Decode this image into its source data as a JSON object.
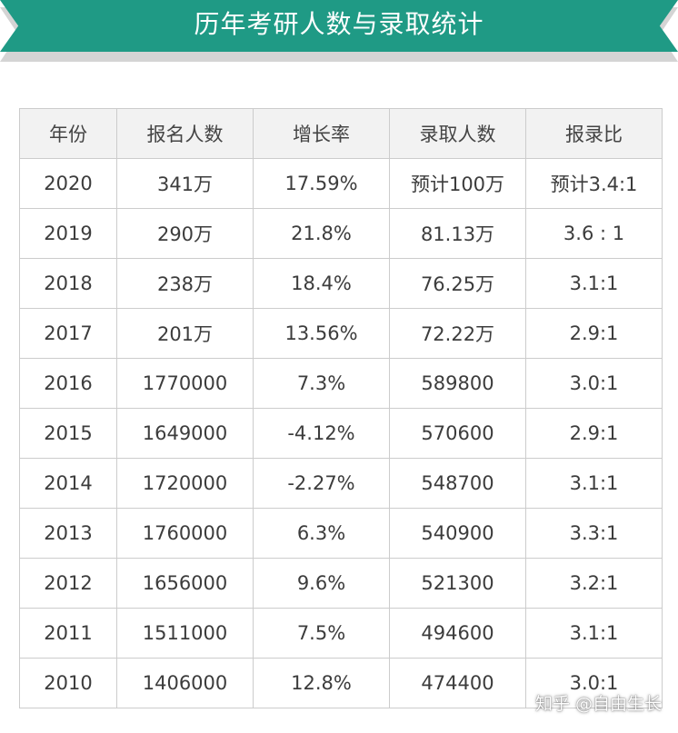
{
  "banner": {
    "title": "历年考研人数与录取统计"
  },
  "table": {
    "headers": [
      "年份",
      "报名人数",
      "增长率",
      "录取人数",
      "报录比"
    ],
    "rows": [
      [
        "2020",
        "341万",
        "17.59%",
        "预计100万",
        "预计3.4:1"
      ],
      [
        "2019",
        "290万",
        "21.8%",
        "81.13万",
        "3.6 : 1"
      ],
      [
        "2018",
        "238万",
        "18.4%",
        "76.25万",
        "3.1:1"
      ],
      [
        "2017",
        "201万",
        "13.56%",
        "72.22万",
        "2.9:1"
      ],
      [
        "2016",
        "1770000",
        "7.3%",
        "589800",
        "3.0:1"
      ],
      [
        "2015",
        "1649000",
        "-4.12%",
        "570600",
        "2.9:1"
      ],
      [
        "2014",
        "1720000",
        "-2.27%",
        "548700",
        "3.1:1"
      ],
      [
        "2013",
        "1760000",
        "6.3%",
        "540900",
        "3.3:1"
      ],
      [
        "2012",
        "1656000",
        "9.6%",
        "521300",
        "3.2:1"
      ],
      [
        "2011",
        "1511000",
        "7.5%",
        "494600",
        "3.1:1"
      ],
      [
        "2010",
        "1406000",
        "12.8%",
        "474400",
        "3.0:1"
      ]
    ]
  },
  "watermark": "知乎 @自由生长",
  "colors": {
    "accent": "#1f9a85",
    "teal_text": "#2a8f7d",
    "header_bg": "#f2f2f2",
    "border": "#cccccc"
  }
}
